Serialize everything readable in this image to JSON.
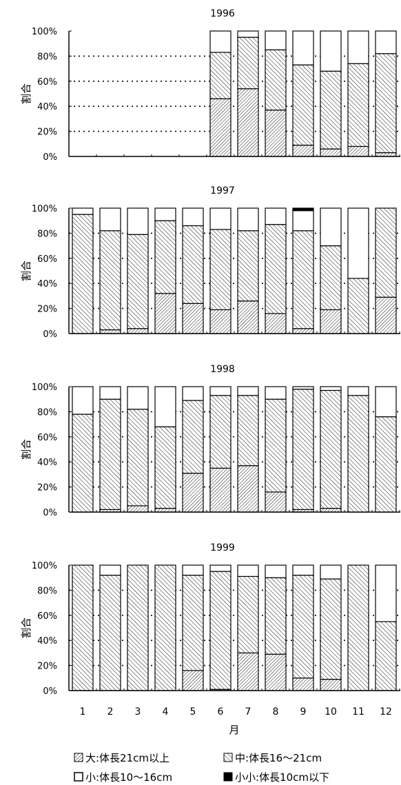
{
  "chart_data": {
    "type": "bar",
    "stacked": true,
    "xlabel": "月",
    "ylabel": "割合",
    "categories": [
      "1",
      "2",
      "3",
      "4",
      "5",
      "6",
      "7",
      "8",
      "9",
      "10",
      "11",
      "12"
    ],
    "ylim": [
      0,
      100
    ],
    "yticks": [
      "0%",
      "20%",
      "40%",
      "60%",
      "80%",
      "100%"
    ],
    "grid": "dotted-horizontal",
    "legend_position": "bottom",
    "series": [
      {
        "name": "大:体長21cm以上",
        "pattern": "hatch-forward",
        "color": "#000000"
      },
      {
        "name": "中:体長16～21cm",
        "pattern": "hatch-back",
        "color": "#000000"
      },
      {
        "name": "小:体長10～16cm",
        "pattern": "solid",
        "color": "#ffffff"
      },
      {
        "name": "小小:体長10cm以下",
        "pattern": "solid",
        "color": "#000000"
      }
    ],
    "panels": [
      {
        "title": "1996",
        "values": [
          [
            null,
            null,
            null,
            null,
            null,
            46,
            54,
            37,
            9,
            6,
            8,
            3
          ],
          [
            null,
            null,
            null,
            null,
            null,
            37,
            41,
            48,
            64,
            62,
            66,
            79
          ],
          [
            null,
            null,
            null,
            null,
            null,
            17,
            5,
            15,
            27,
            32,
            26,
            18
          ],
          [
            null,
            null,
            null,
            null,
            null,
            0,
            0,
            0,
            0,
            0,
            0,
            0
          ]
        ]
      },
      {
        "title": "1997",
        "values": [
          [
            0,
            3,
            4,
            32,
            24,
            19,
            26,
            16,
            4,
            19,
            0,
            29
          ],
          [
            95,
            79,
            75,
            58,
            62,
            64,
            56,
            71,
            78,
            51,
            44,
            71
          ],
          [
            5,
            18,
            21,
            10,
            14,
            17,
            18,
            13,
            16,
            30,
            56,
            0
          ],
          [
            0,
            0,
            0,
            0,
            0,
            0,
            0,
            0,
            2,
            0,
            0,
            0
          ]
        ]
      },
      {
        "title": "1998",
        "values": [
          [
            0,
            2,
            5,
            3,
            31,
            35,
            37,
            16,
            2,
            3,
            0,
            0
          ],
          [
            78,
            88,
            77,
            65,
            58,
            58,
            56,
            74,
            96,
            94,
            93,
            76
          ],
          [
            22,
            10,
            18,
            32,
            11,
            7,
            7,
            10,
            2,
            3,
            7,
            24
          ],
          [
            0,
            0,
            0,
            0,
            0,
            0,
            0,
            0,
            0,
            0,
            0,
            0
          ]
        ]
      },
      {
        "title": "1999",
        "values": [
          [
            0,
            0,
            0,
            0,
            16,
            1,
            30,
            29,
            10,
            9,
            0,
            0
          ],
          [
            100,
            92,
            100,
            100,
            76,
            94,
            61,
            61,
            82,
            80,
            100,
            55
          ],
          [
            0,
            8,
            0,
            0,
            8,
            5,
            9,
            10,
            8,
            11,
            0,
            45
          ],
          [
            0,
            0,
            0,
            0,
            0,
            0,
            0,
            0,
            0,
            0,
            0,
            0
          ]
        ]
      }
    ]
  }
}
